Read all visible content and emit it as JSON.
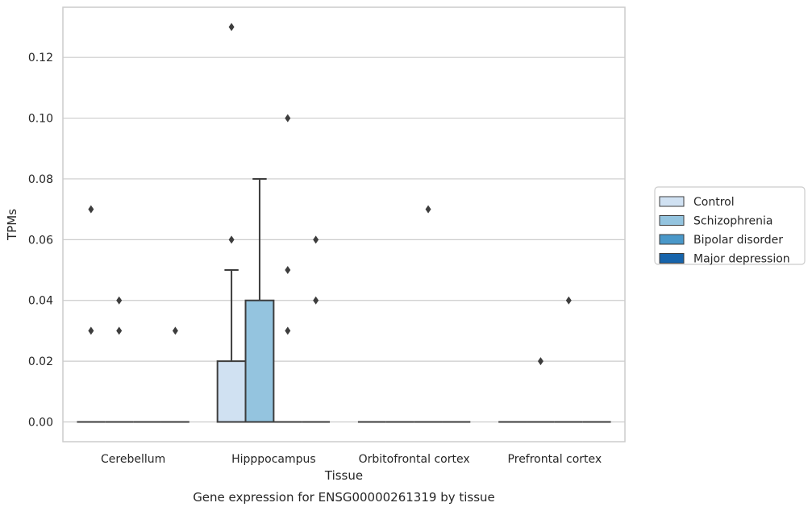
{
  "chart_data": {
    "type": "boxplot",
    "caption": "Gene expression for ENSG00000261319 by tissue",
    "xlabel": "Tissue",
    "ylabel": "TPMs",
    "ylim": [
      -0.0065,
      0.1365
    ],
    "yticks": [
      0.0,
      0.02,
      0.04,
      0.06,
      0.08,
      0.1,
      0.12
    ],
    "ytick_labels": [
      "0.00",
      "0.02",
      "0.04",
      "0.06",
      "0.08",
      "0.10",
      "0.12"
    ],
    "grid": "horizontal",
    "legend_position": "right",
    "categories": [
      "Cerebellum",
      "Hipppocampus",
      "Orbitofrontal cortex",
      "Prefrontal cortex"
    ],
    "series": [
      {
        "name": "Control",
        "color": "#d0e1f2",
        "boxes": [
          {
            "q1": 0,
            "median": 0,
            "q3": 0,
            "whislo": 0,
            "whishi": 0,
            "fliers": [
              0.07,
              0.03
            ]
          },
          {
            "q1": 0,
            "median": 0,
            "q3": 0.02,
            "whislo": 0,
            "whishi": 0.05,
            "fliers": [
              0.13,
              0.06
            ]
          },
          {
            "q1": 0,
            "median": 0,
            "q3": 0,
            "whislo": 0,
            "whishi": 0,
            "fliers": []
          },
          {
            "q1": 0,
            "median": 0,
            "q3": 0,
            "whislo": 0,
            "whishi": 0,
            "fliers": []
          }
        ]
      },
      {
        "name": "Schizophrenia",
        "color": "#94c4df",
        "boxes": [
          {
            "q1": 0,
            "median": 0,
            "q3": 0,
            "whislo": 0,
            "whishi": 0,
            "fliers": [
              0.04,
              0.03
            ]
          },
          {
            "q1": 0,
            "median": 0,
            "q3": 0.04,
            "whislo": 0,
            "whishi": 0.08,
            "fliers": []
          },
          {
            "q1": 0,
            "median": 0,
            "q3": 0,
            "whislo": 0,
            "whishi": 0,
            "fliers": []
          },
          {
            "q1": 0,
            "median": 0,
            "q3": 0,
            "whislo": 0,
            "whishi": 0,
            "fliers": [
              0.02
            ]
          }
        ]
      },
      {
        "name": "Bipolar disorder",
        "color": "#4a98c9",
        "boxes": [
          {
            "q1": 0,
            "median": 0,
            "q3": 0,
            "whislo": 0,
            "whishi": 0,
            "fliers": []
          },
          {
            "q1": 0,
            "median": 0,
            "q3": 0,
            "whislo": 0,
            "whishi": 0,
            "fliers": [
              0.1,
              0.05,
              0.03
            ]
          },
          {
            "q1": 0,
            "median": 0,
            "q3": 0,
            "whislo": 0,
            "whishi": 0,
            "fliers": [
              0.07
            ]
          },
          {
            "q1": 0,
            "median": 0,
            "q3": 0,
            "whislo": 0,
            "whishi": 0,
            "fliers": [
              0.04
            ]
          }
        ]
      },
      {
        "name": "Major depression",
        "color": "#1764ab",
        "boxes": [
          {
            "q1": 0,
            "median": 0,
            "q3": 0,
            "whislo": 0,
            "whishi": 0,
            "fliers": [
              0.03
            ]
          },
          {
            "q1": 0,
            "median": 0,
            "q3": 0,
            "whislo": 0,
            "whishi": 0,
            "fliers": [
              0.06,
              0.04
            ]
          },
          {
            "q1": 0,
            "median": 0,
            "q3": 0,
            "whislo": 0,
            "whishi": 0,
            "fliers": []
          },
          {
            "q1": 0,
            "median": 0,
            "q3": 0,
            "whislo": 0,
            "whishi": 0,
            "fliers": []
          }
        ]
      }
    ]
  }
}
